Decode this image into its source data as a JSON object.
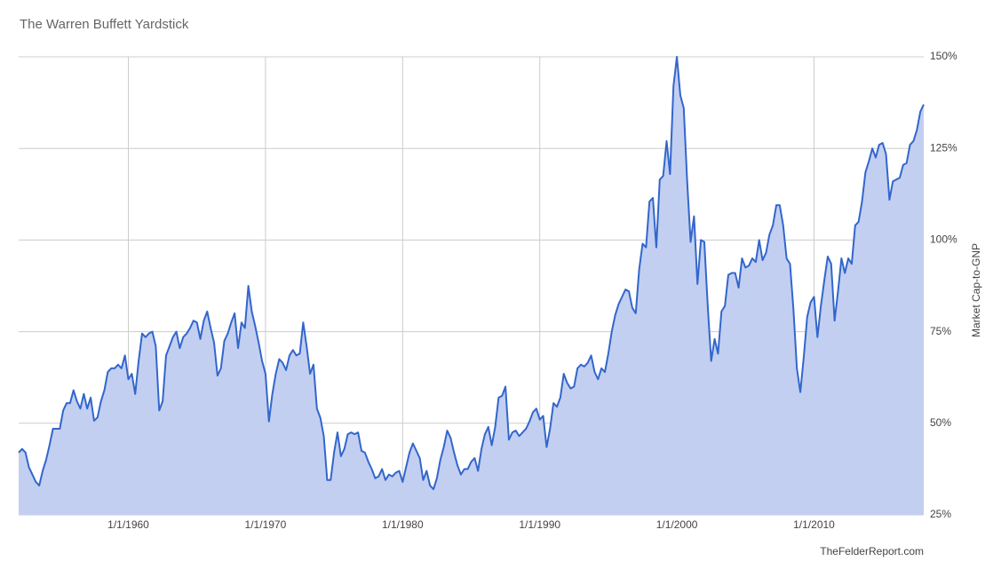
{
  "chart_data": {
    "type": "area",
    "title": "The Warren Buffett Yardstick",
    "y_axis_label": "Market Cap-to-GNP",
    "source": "TheFelderReport.com",
    "color": "#3366cc",
    "fill_color": "#c2cff1",
    "grid": true,
    "xlim": [
      1952,
      2018
    ],
    "ylim": [
      25,
      150
    ],
    "xticks": [
      {
        "value": 1960,
        "label": "1/1/1960"
      },
      {
        "value": 1970,
        "label": "1/1/1970"
      },
      {
        "value": 1980,
        "label": "1/1/1980"
      },
      {
        "value": 1990,
        "label": "1/1/1990"
      },
      {
        "value": 2000,
        "label": "1/1/2000"
      },
      {
        "value": 2010,
        "label": "1/1/2010"
      }
    ],
    "yticks": [
      {
        "value": 25,
        "label": "25%"
      },
      {
        "value": 50,
        "label": "50%"
      },
      {
        "value": 75,
        "label": "75%"
      },
      {
        "value": 100,
        "label": "100%"
      },
      {
        "value": 125,
        "label": "125%"
      },
      {
        "value": 150,
        "label": "150%"
      }
    ],
    "x": [
      1952,
      1952.25,
      1952.5,
      1952.75,
      1953,
      1953.25,
      1953.5,
      1953.75,
      1954,
      1954.25,
      1954.5,
      1954.75,
      1955,
      1955.25,
      1955.5,
      1955.75,
      1956,
      1956.25,
      1956.5,
      1956.75,
      1957,
      1957.25,
      1957.5,
      1957.75,
      1958,
      1958.25,
      1958.5,
      1958.75,
      1959,
      1959.25,
      1959.5,
      1959.75,
      1960,
      1960.25,
      1960.5,
      1960.75,
      1961,
      1961.25,
      1961.5,
      1961.75,
      1962,
      1962.25,
      1962.5,
      1962.75,
      1963,
      1963.25,
      1963.5,
      1963.75,
      1964,
      1964.25,
      1964.5,
      1964.75,
      1965,
      1965.25,
      1965.5,
      1965.75,
      1966,
      1966.25,
      1966.5,
      1966.75,
      1967,
      1967.25,
      1967.5,
      1967.75,
      1968,
      1968.25,
      1968.5,
      1968.75,
      1969,
      1969.25,
      1969.5,
      1969.75,
      1970,
      1970.25,
      1970.5,
      1970.75,
      1971,
      1971.25,
      1971.5,
      1971.75,
      1972,
      1972.25,
      1972.5,
      1972.75,
      1973,
      1973.25,
      1973.5,
      1973.75,
      1974,
      1974.25,
      1974.5,
      1974.75,
      1975,
      1975.25,
      1975.5,
      1975.75,
      1976,
      1976.25,
      1976.5,
      1976.75,
      1977,
      1977.25,
      1977.5,
      1977.75,
      1978,
      1978.25,
      1978.5,
      1978.75,
      1979,
      1979.25,
      1979.5,
      1979.75,
      1980,
      1980.25,
      1980.5,
      1980.75,
      1981,
      1981.25,
      1981.5,
      1981.75,
      1982,
      1982.25,
      1982.5,
      1982.75,
      1983,
      1983.25,
      1983.5,
      1983.75,
      1984,
      1984.25,
      1984.5,
      1984.75,
      1985,
      1985.25,
      1985.5,
      1985.75,
      1986,
      1986.25,
      1986.5,
      1986.75,
      1987,
      1987.25,
      1987.5,
      1987.75,
      1988,
      1988.25,
      1988.5,
      1988.75,
      1989,
      1989.25,
      1989.5,
      1989.75,
      1990,
      1990.25,
      1990.5,
      1990.75,
      1991,
      1991.25,
      1991.5,
      1991.75,
      1992,
      1992.25,
      1992.5,
      1992.75,
      1993,
      1993.25,
      1993.5,
      1993.75,
      1994,
      1994.25,
      1994.5,
      1994.75,
      1995,
      1995.25,
      1995.5,
      1995.75,
      1996,
      1996.25,
      1996.5,
      1996.75,
      1997,
      1997.25,
      1997.5,
      1997.75,
      1998,
      1998.25,
      1998.5,
      1998.75,
      1999,
      1999.25,
      1999.5,
      1999.75,
      2000,
      2000.25,
      2000.5,
      2000.75,
      2001,
      2001.25,
      2001.5,
      2001.75,
      2002,
      2002.25,
      2002.5,
      2002.75,
      2003,
      2003.25,
      2003.5,
      2003.75,
      2004,
      2004.25,
      2004.5,
      2004.75,
      2005,
      2005.25,
      2005.5,
      2005.75,
      2006,
      2006.25,
      2006.5,
      2006.75,
      2007,
      2007.25,
      2007.5,
      2007.75,
      2008,
      2008.25,
      2008.5,
      2008.75,
      2009,
      2009.25,
      2009.5,
      2009.75,
      2010,
      2010.25,
      2010.5,
      2010.75,
      2011,
      2011.25,
      2011.5,
      2011.75,
      2012,
      2012.25,
      2012.5,
      2012.75,
      2013,
      2013.25,
      2013.5,
      2013.75,
      2014,
      2014.25,
      2014.5,
      2014.75,
      2015,
      2015.25,
      2015.5,
      2015.75,
      2016,
      2016.25,
      2016.5,
      2016.75,
      2017,
      2017.25,
      2017.5,
      2017.75,
      2018
    ],
    "values": [
      42,
      43,
      42,
      38,
      36,
      34,
      33,
      37,
      40,
      44,
      48.5,
      48.5,
      48.5,
      53.5,
      55.5,
      55.5,
      59,
      56,
      54,
      58,
      54,
      57,
      50.7,
      51.6,
      56,
      59,
      64,
      65,
      65,
      66,
      65,
      68.5,
      62,
      63.5,
      58,
      67,
      74.5,
      73.5,
      74.5,
      75,
      71,
      53.5,
      56,
      68.5,
      71,
      73.5,
      75,
      70.5,
      73.5,
      74.5,
      76,
      78,
      77.5,
      73,
      78,
      80.5,
      76,
      72,
      63,
      65,
      72.5,
      74.5,
      77.5,
      80,
      70.5,
      77.5,
      76,
      87.5,
      80.5,
      76.5,
      72,
      67,
      63.5,
      50.5,
      58,
      63.5,
      67.5,
      66.5,
      64.5,
      68.5,
      70,
      68.5,
      69,
      77.5,
      71,
      63.5,
      66,
      54,
      51.5,
      46.5,
      34.5,
      34.5,
      42,
      47.5,
      41,
      43,
      47,
      47.5,
      47,
      47.5,
      42.5,
      42,
      39.5,
      37.5,
      35,
      35.5,
      37.5,
      34.5,
      36,
      35.5,
      36.5,
      37,
      34,
      38,
      42,
      44.5,
      42.5,
      40.5,
      34.5,
      37,
      33,
      32,
      35,
      40,
      43.5,
      48,
      46,
      42,
      38.5,
      36,
      37.5,
      37.5,
      39.5,
      40.5,
      37,
      43,
      47,
      49,
      44,
      49,
      57,
      57.5,
      60,
      45.5,
      47.5,
      48,
      46.5,
      47.5,
      48.5,
      50.5,
      53,
      54,
      51,
      52,
      43.5,
      48.5,
      55.5,
      54.5,
      57,
      63.5,
      61,
      59.5,
      60,
      65,
      66,
      65.5,
      66.5,
      68.5,
      64,
      62,
      65,
      64,
      69,
      75,
      79.5,
      82.5,
      84.5,
      86.5,
      86,
      81.5,
      80,
      92,
      99,
      98,
      110.5,
      111.5,
      98,
      116.5,
      117.5,
      127,
      118,
      142,
      150,
      139.5,
      136,
      116,
      99.5,
      106.5,
      88,
      100,
      99.5,
      82,
      67,
      73,
      69,
      80.5,
      82,
      90.5,
      91,
      91,
      87,
      95,
      92.5,
      93,
      95,
      94,
      100,
      94.5,
      96.5,
      101.5,
      104,
      109.5,
      109.5,
      104,
      95,
      93.5,
      81,
      65,
      58.5,
      68,
      79,
      83,
      84.5,
      73.5,
      82,
      89,
      95.5,
      93.5,
      78,
      86,
      95,
      91,
      95,
      93.5,
      104,
      105,
      110.5,
      118.5,
      121.5,
      125,
      122.5,
      126,
      126.5,
      123.5,
      111,
      116,
      116.5,
      117,
      120.5,
      121,
      126,
      127,
      130,
      135,
      137
    ]
  }
}
